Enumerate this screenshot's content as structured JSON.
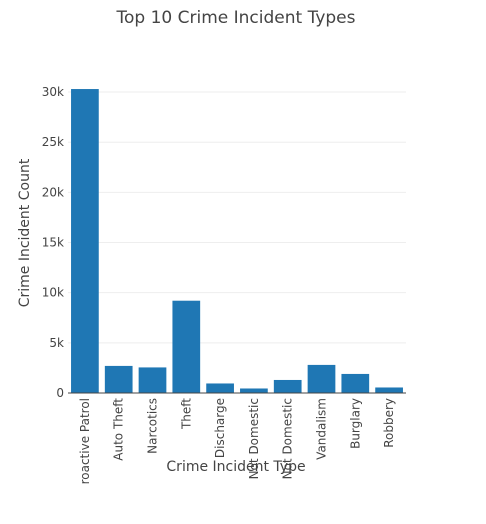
{
  "chart_data": {
    "type": "bar",
    "title": "Top 10 Crime Incident Types",
    "xlabel": "Crime Incident Type",
    "ylabel": "Crime Incident Count",
    "categories": [
      "Proactive Patrol",
      "Auto Theft",
      "Narcotics",
      "Theft",
      "Discharge",
      "Not Domestic",
      "Not Domestic",
      "Vandalism",
      "Burglary",
      "Robbery"
    ],
    "values": [
      30300,
      2700,
      2550,
      9200,
      950,
      450,
      1300,
      2800,
      1900,
      550
    ],
    "ylim": [
      0,
      31500
    ],
    "yticks": [
      0,
      5000,
      10000,
      15000,
      20000,
      25000,
      30000
    ],
    "yticklabels": [
      "0",
      "5k",
      "10k",
      "15k",
      "20k",
      "25k",
      "30k"
    ],
    "grid": true,
    "legend": "none",
    "bar_color": "#1f77b4"
  }
}
